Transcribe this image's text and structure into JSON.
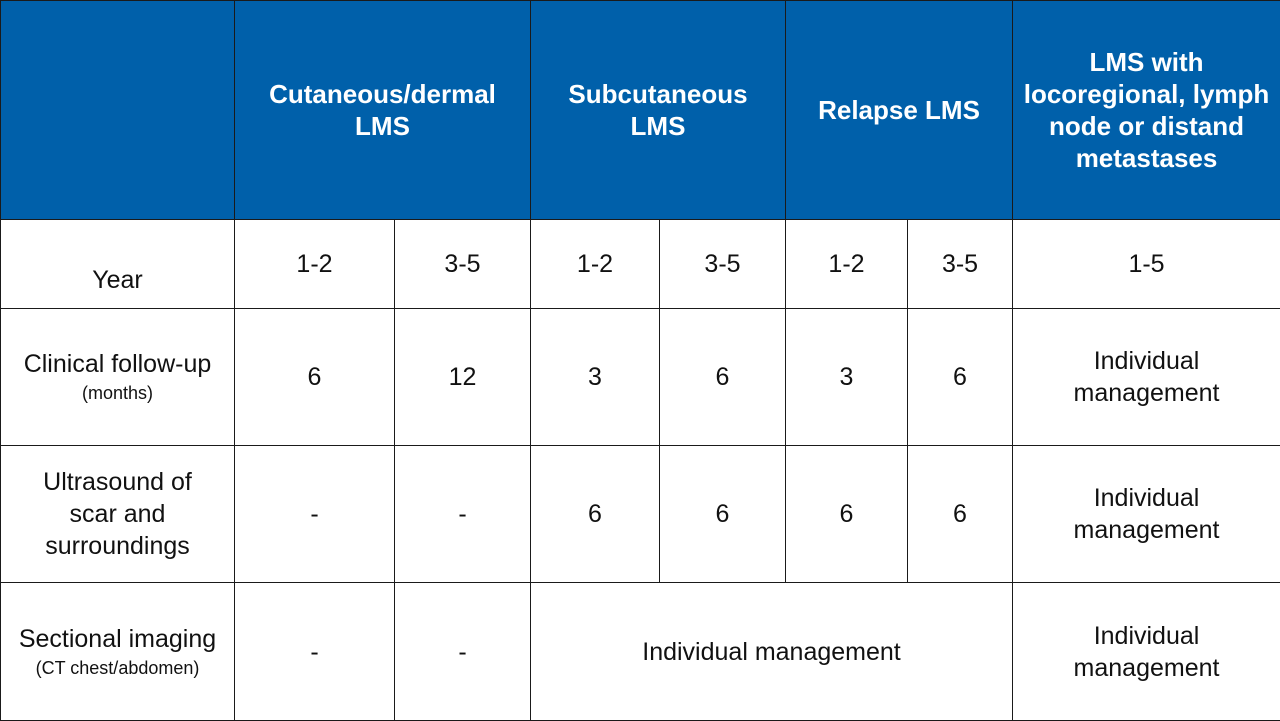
{
  "header": {
    "corner": "",
    "groups": [
      "Cutaneous/dermal LMS",
      "Subcutaneous LMS",
      "Relapse LMS",
      "LMS with locoregional, lymph node or distand metastases"
    ]
  },
  "year_row": {
    "label": "Year",
    "values": [
      "1-2",
      "3-5",
      "1-2",
      "3-5",
      "1-2",
      "3-5",
      "1-5"
    ]
  },
  "rows": [
    {
      "label": "Clinical follow-up",
      "sublabel": "(months)",
      "values": [
        "6",
        "12",
        "3",
        "6",
        "3",
        "6",
        "Individual management"
      ]
    },
    {
      "label": "Ultrasound of scar and surroundings",
      "sublabel": "",
      "values": [
        "-",
        "-",
        "6",
        "6",
        "6",
        "6",
        "Individual management"
      ]
    },
    {
      "label": "Sectional imaging",
      "sublabel": "(CT chest/abdomen)",
      "values": [
        "-",
        "-",
        "Individual management",
        "Individual management"
      ]
    }
  ],
  "colors": {
    "header_bg": "#0060aa",
    "header_text": "#ffffff",
    "border": "#1a1a1a"
  }
}
